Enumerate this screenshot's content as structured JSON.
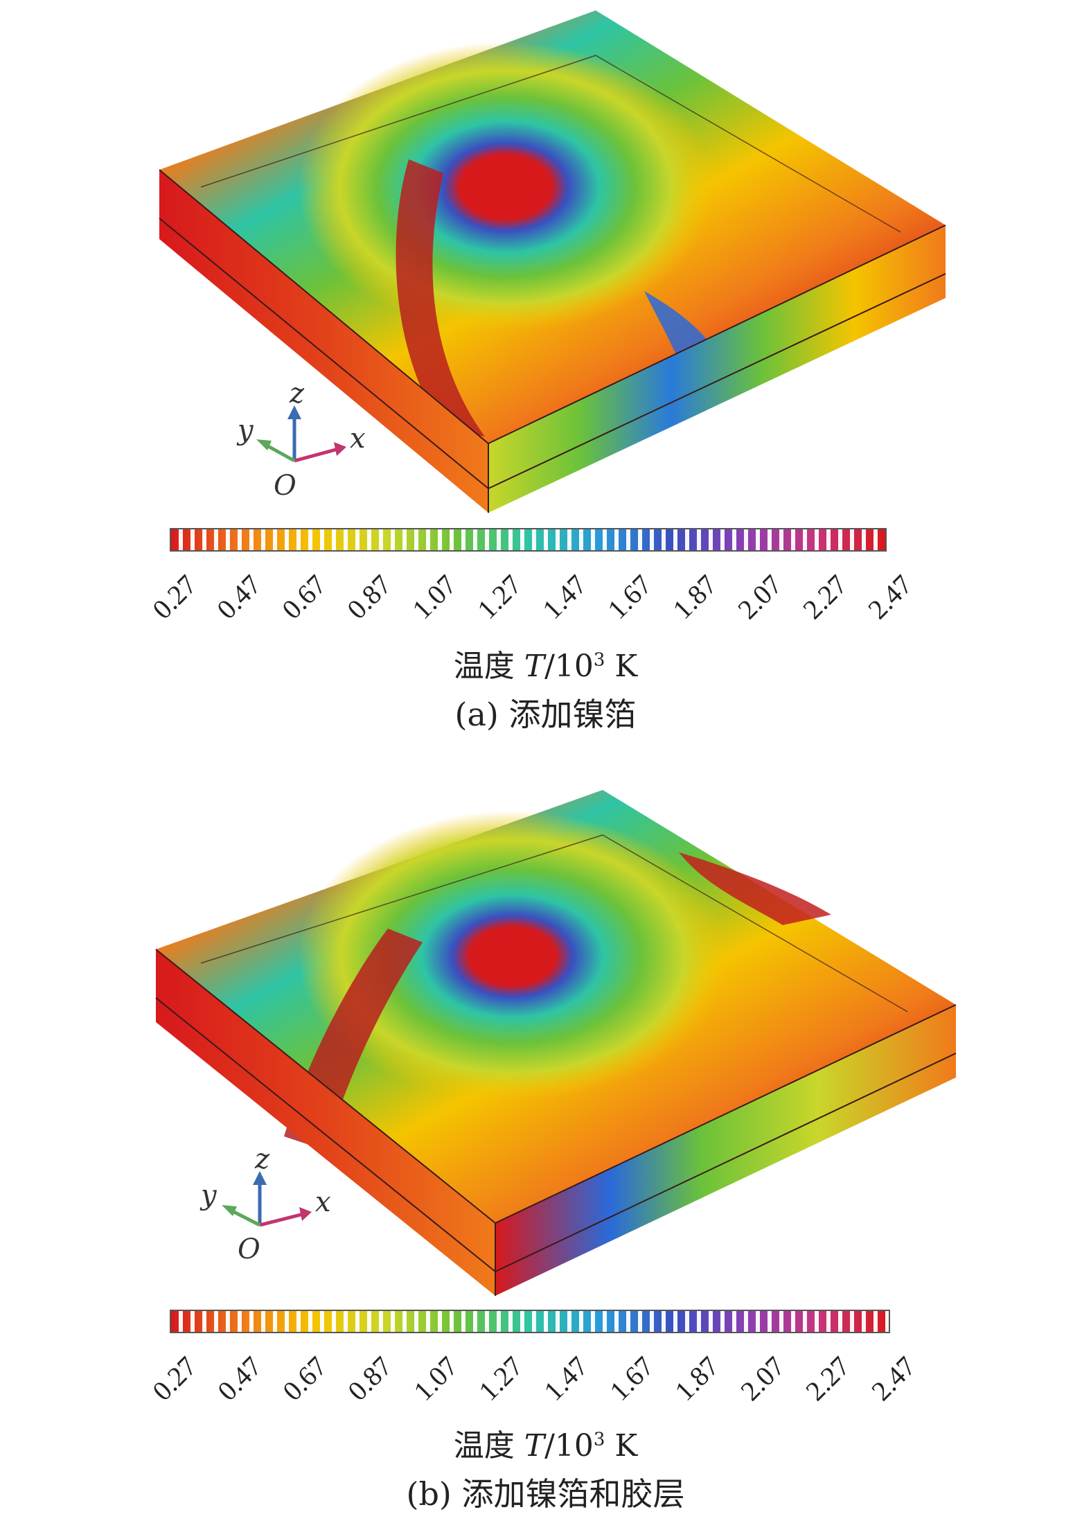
{
  "panels": [
    {
      "caption": "(a) 添加镍箔",
      "colorbar": {
        "ticks": [
          "0.27",
          "0.47",
          "0.67",
          "0.87",
          "1.07",
          "1.27",
          "1.47",
          "1.67",
          "1.87",
          "2.07",
          "2.27",
          "2.47"
        ],
        "label_prefix": "温度 ",
        "label_var": "T",
        "label_rest": "/10",
        "label_exp": "3",
        "label_unit": " K"
      },
      "axes": {
        "x": "x",
        "y": "y",
        "z": "z",
        "origin": "O"
      }
    },
    {
      "caption": "(b) 添加镍箔和胶层",
      "colorbar": {
        "ticks": [
          "0.27",
          "0.47",
          "0.67",
          "0.87",
          "1.07",
          "1.27",
          "1.47",
          "1.67",
          "1.87",
          "2.07",
          "2.27",
          "2.47"
        ],
        "label_prefix": "温度 ",
        "label_var": "T",
        "label_rest": "/10",
        "label_exp": "3",
        "label_unit": " K"
      },
      "axes": {
        "x": "x",
        "y": "y",
        "z": "z",
        "origin": "O"
      }
    }
  ],
  "colors": {
    "hot": "#d7191c",
    "warm": "#f07a1a",
    "yellow": "#f5c400",
    "green": "#6cc23a",
    "cyan": "#2ec4a5",
    "blue": "#2a6ad9",
    "purple": "#8a3fb3"
  }
}
